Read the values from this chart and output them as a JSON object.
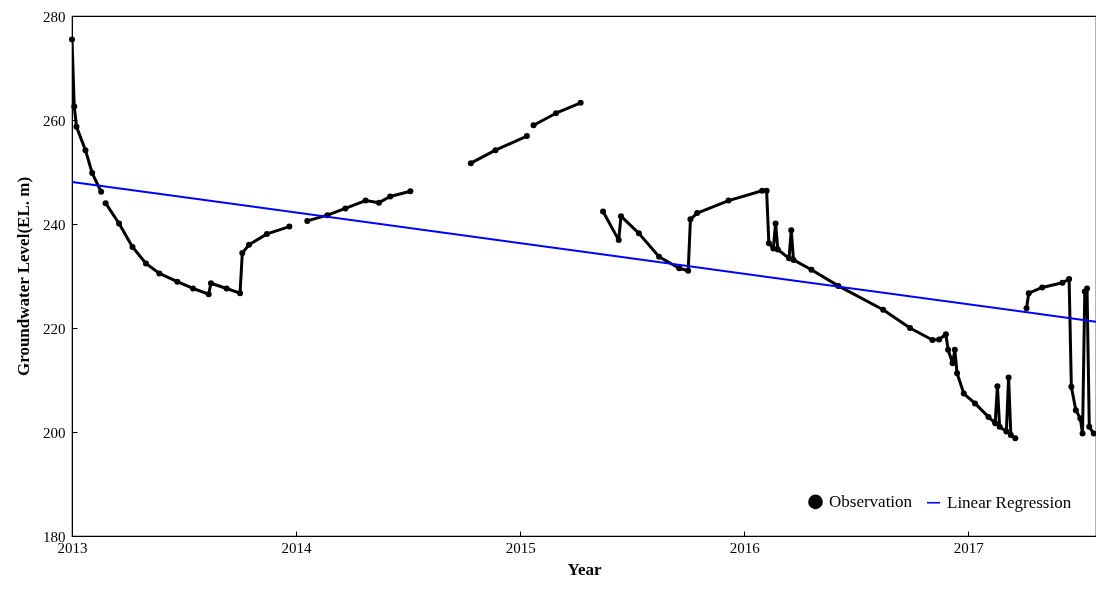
{
  "chart_data": {
    "type": "line",
    "xlabel": "Year",
    "ylabel": "Groundwater Level(EL. m)",
    "xlim": [
      2013,
      2017.57
    ],
    "xticks": [
      2013,
      2014,
      2015,
      2016,
      2017
    ],
    "ylim": [
      180,
      280
    ],
    "yticks": [
      180,
      200,
      220,
      240,
      260,
      280
    ],
    "legend": "bottom right",
    "series": [
      {
        "name": "Observation",
        "marker": "circle",
        "color": "#000000",
        "x": [
          2013.0,
          2013.01,
          2013.02,
          2013.06,
          2013.09,
          2013.13,
          2013.14,
          2013.15,
          2013.21,
          2013.27,
          2013.33,
          2013.39,
          2013.47,
          2013.54,
          2013.61,
          2013.62,
          2013.69,
          2013.75,
          2013.76,
          2013.79,
          2013.87,
          2013.97,
          2013.99,
          2014.05,
          2014.14,
          2014.22,
          2014.31,
          2014.37,
          2014.42,
          2014.51,
          2014.6,
          2014.78,
          2014.89,
          2015.03,
          2015.04,
          2015.06,
          2015.16,
          2015.27,
          2015.3,
          2015.37,
          2015.44,
          2015.45,
          2015.53,
          2015.62,
          2015.71,
          2015.75,
          2015.76,
          2015.79,
          2015.93,
          2016.08,
          2016.1,
          2016.11,
          2016.13,
          2016.14,
          2016.15,
          2016.2,
          2016.21,
          2016.22,
          2016.3,
          2016.42,
          2016.62,
          2016.74,
          2016.84,
          2016.87,
          2016.9,
          2016.91,
          2016.93,
          2016.94,
          2016.95,
          2016.98,
          2017.03,
          2017.09,
          2017.12,
          2017.13,
          2017.14,
          2017.17,
          2017.18,
          2017.19,
          2017.21,
          2017.23,
          2017.26,
          2017.27,
          2017.33,
          2017.42,
          2017.45,
          2017.46,
          2017.48,
          2017.5,
          2017.51,
          2017.52,
          2017.53,
          2017.54,
          2017.56
        ],
        "values": [
          275.5,
          262.6,
          258.7,
          254.2,
          249.8,
          246.2,
          null,
          244.0,
          240.1,
          235.6,
          232.4,
          230.5,
          228.9,
          227.6,
          226.5,
          228.6,
          227.6,
          226.7,
          234.4,
          236.0,
          238.1,
          239.5,
          null,
          240.6,
          241.7,
          243.0,
          244.5,
          244.1,
          245.3,
          246.3,
          null,
          251.7,
          254.2,
          256.9,
          null,
          259.0,
          261.3,
          263.3,
          null,
          242.4,
          236.9,
          241.5,
          238.2,
          233.7,
          231.5,
          231.0,
          240.9,
          242.1,
          244.5,
          246.4,
          246.4,
          236.3,
          235.3,
          240.1,
          235.1,
          233.4,
          238.8,
          233.1,
          231.2,
          228.1,
          223.5,
          220.0,
          217.7,
          217.8,
          218.8,
          215.8,
          213.2,
          215.8,
          211.3,
          207.4,
          205.5,
          202.9,
          201.7,
          208.8,
          201.0,
          200.1,
          210.5,
          199.4,
          198.8,
          null,
          223.8,
          226.7,
          227.8,
          228.7,
          229.4,
          208.7,
          204.2,
          202.6,
          199.7,
          227.0,
          227.6,
          201.0,
          199.7
        ]
      },
      {
        "name": "Linear Regression",
        "marker": "none",
        "color": "#0000ff",
        "x": [
          2013,
          2017.57
        ],
        "values": [
          248.1,
          221.2
        ]
      }
    ]
  }
}
